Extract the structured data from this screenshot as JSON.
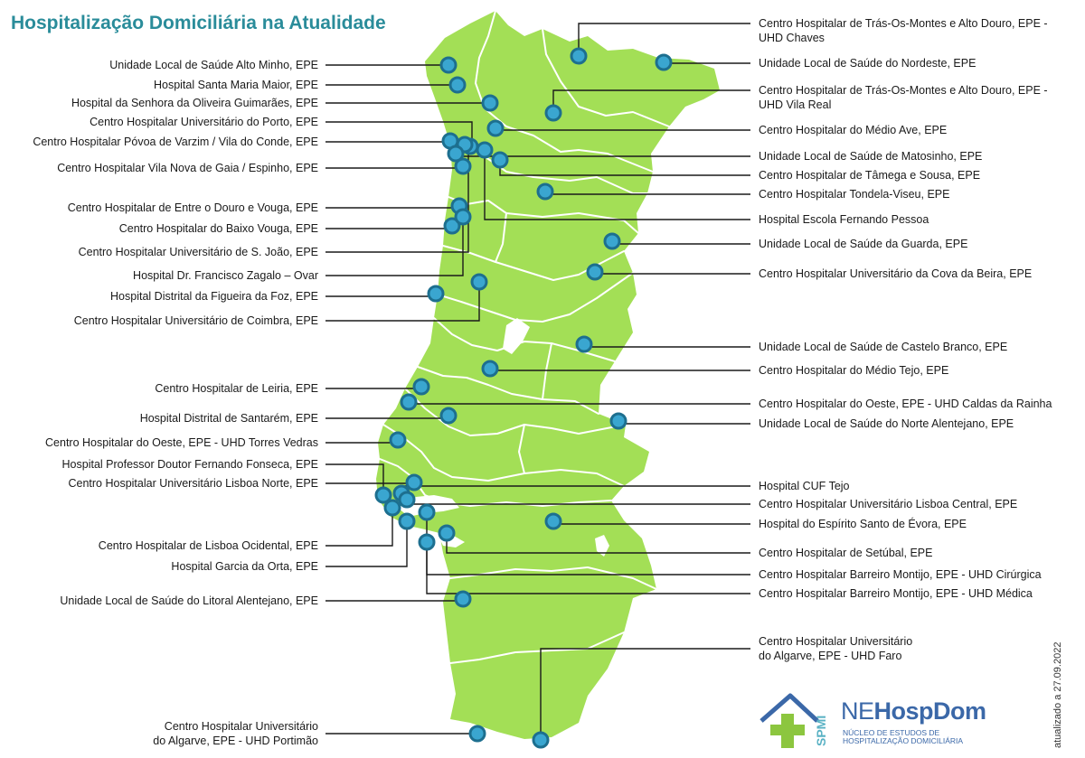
{
  "title": "Hospitalização Domiciliária na Atualidade",
  "colors": {
    "land": "#a3df56",
    "border": "#ffffff",
    "marker_fill": "#3aa6d0",
    "marker_ring": "#1d6f8f",
    "leader": "#1a1a1a",
    "title": "#2a8c9a",
    "logo_blue": "#3b68a8",
    "logo_green": "#8cc63f"
  },
  "labels_left": [
    {
      "id": "alto-minho",
      "lines": [
        "Unidade Local de Saúde Alto Minho, EPE"
      ]
    },
    {
      "id": "santa-maria-maior",
      "lines": [
        "Hospital Santa Maria Maior, EPE"
      ]
    },
    {
      "id": "oliveira-guimaraes",
      "lines": [
        "Hospital da Senhora da Oliveira Guimarães, EPE"
      ]
    },
    {
      "id": "univ-porto",
      "lines": [
        "Centro Hospitalar Universitário do Porto, EPE"
      ]
    },
    {
      "id": "povoa-varzim",
      "lines": [
        "Centro Hospitalar Póvoa de Varzim / Vila do Conde, EPE"
      ]
    },
    {
      "id": "gaia-espinho",
      "lines": [
        "Centro Hospitalar Vila Nova de Gaia / Espinho, EPE"
      ]
    },
    {
      "id": "entre-douro-vouga",
      "lines": [
        "Centro Hospitalar de Entre o Douro e Vouga, EPE"
      ]
    },
    {
      "id": "baixo-vouga",
      "lines": [
        "Centro Hospitalar do Baixo Vouga, EPE"
      ]
    },
    {
      "id": "univ-sao-joao",
      "lines": [
        "Centro Hospitalar Universitário de S. João, EPE"
      ]
    },
    {
      "id": "zagalo-ovar",
      "lines": [
        "Hospital Dr. Francisco Zagalo – Ovar"
      ]
    },
    {
      "id": "figueira-foz",
      "lines": [
        "Hospital Distrital da Figueira da Foz, EPE"
      ]
    },
    {
      "id": "univ-coimbra",
      "lines": [
        "Centro Hospitalar Universitário de Coimbra, EPE"
      ]
    },
    {
      "id": "leiria",
      "lines": [
        "Centro Hospitalar de Leiria, EPE"
      ]
    },
    {
      "id": "santarem",
      "lines": [
        "Hospital Distrital de Santarém, EPE"
      ]
    },
    {
      "id": "oeste-torres",
      "lines": [
        "Centro Hospitalar do Oeste, EPE - UHD Torres Vedras"
      ]
    },
    {
      "id": "fernando-fonseca",
      "lines": [
        "Hospital Professor Doutor Fernando Fonseca, EPE"
      ]
    },
    {
      "id": "lisboa-norte",
      "lines": [
        "Centro Hospitalar Universitário Lisboa Norte, EPE"
      ]
    },
    {
      "id": "lisboa-ocidental",
      "lines": [
        "Centro Hospitalar de Lisboa Ocidental, EPE"
      ]
    },
    {
      "id": "garcia-orta",
      "lines": [
        "Hospital Garcia da Orta, EPE"
      ]
    },
    {
      "id": "litoral-alentejano",
      "lines": [
        "Unidade Local de Saúde do Litoral Alentejano, EPE"
      ]
    },
    {
      "id": "algarve-portimao",
      "lines": [
        "Centro Hospitalar Universitário",
        "do Algarve, EPE - UHD Portimão"
      ]
    }
  ],
  "labels_right": [
    {
      "id": "tmad-chaves",
      "lines": [
        "Centro Hospitalar de Trás-Os-Montes e Alto Douro, EPE -",
        "UHD Chaves"
      ]
    },
    {
      "id": "nordeste",
      "lines": [
        "Unidade Local de Saúde do Nordeste, EPE"
      ]
    },
    {
      "id": "tmad-vila-real",
      "lines": [
        "Centro Hospitalar de Trás-Os-Montes e Alto Douro, EPE -",
        "UHD Vila Real"
      ]
    },
    {
      "id": "medio-ave",
      "lines": [
        "Centro Hospitalar do Médio Ave, EPE"
      ]
    },
    {
      "id": "matosinhos",
      "lines": [
        "Unidade Local de Saúde de Matosinho, EPE"
      ]
    },
    {
      "id": "tamega-sousa",
      "lines": [
        "Centro Hospitalar de Tâmega e Sousa, EPE"
      ]
    },
    {
      "id": "tondela-viseu",
      "lines": [
        "Centro Hospitalar Tondela-Viseu, EPE"
      ]
    },
    {
      "id": "fernando-pessoa",
      "lines": [
        "Hospital Escola Fernando Pessoa"
      ]
    },
    {
      "id": "guarda",
      "lines": [
        "Unidade Local de Saúde da Guarda, EPE"
      ]
    },
    {
      "id": "cova-beira",
      "lines": [
        "Centro Hospitalar Universitário da Cova da Beira, EPE"
      ]
    },
    {
      "id": "castelo-branco",
      "lines": [
        "Unidade Local de Saúde de Castelo Branco, EPE"
      ]
    },
    {
      "id": "medio-tejo",
      "lines": [
        "Centro Hospitalar do Médio Tejo, EPE"
      ]
    },
    {
      "id": "oeste-caldas",
      "lines": [
        "Centro Hospitalar do Oeste, EPE - UHD Caldas da Rainha"
      ]
    },
    {
      "id": "norte-alentejano",
      "lines": [
        "Unidade Local de Saúde do Norte Alentejano, EPE"
      ]
    },
    {
      "id": "cuf-tejo",
      "lines": [
        "Hospital CUF Tejo"
      ]
    },
    {
      "id": "lisboa-central",
      "lines": [
        "Centro Hospitalar Universitário Lisboa Central, EPE"
      ]
    },
    {
      "id": "espirito-santo-evora",
      "lines": [
        "Hospital do Espírito Santo de Évora, EPE"
      ]
    },
    {
      "id": "setubal",
      "lines": [
        "Centro Hospitalar de Setúbal, EPE"
      ]
    },
    {
      "id": "barreiro-cirurgica",
      "lines": [
        "Centro Hospitalar Barreiro Montijo, EPE - UHD Cirúrgica"
      ]
    },
    {
      "id": "barreiro-medica",
      "lines": [
        "Centro Hospitalar Barreiro Montijo, EPE - UHD Médica"
      ]
    },
    {
      "id": "algarve-faro",
      "lines": [
        "Centro Hospitalar Universitário",
        "do Algarve, EPE - UHD Faro"
      ]
    }
  ],
  "updated_note": "atualizado a 27.09.2022",
  "logo": {
    "spmi": "SPMI",
    "ne": "NE",
    "hospdom": "HospDom",
    "subtitle_line1": "NÚCLEO DE ESTUDOS DE",
    "subtitle_line2": "HOSPITALIZAÇÃO DOMICILIÁRIA"
  }
}
